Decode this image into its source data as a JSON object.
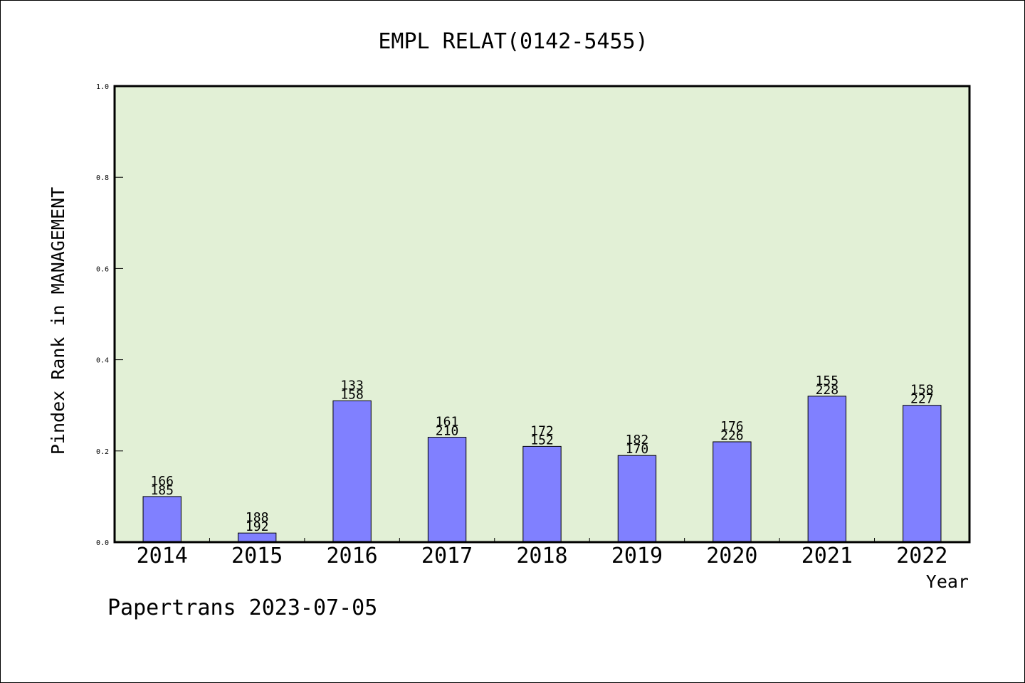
{
  "chart_data": {
    "type": "bar",
    "title": "EMPL RELAT(0142-5455)",
    "xlabel": "Year",
    "ylabel": "Pindex Rank in MANAGEMENT",
    "categories": [
      "2014",
      "2015",
      "2016",
      "2017",
      "2018",
      "2019",
      "2020",
      "2021",
      "2022"
    ],
    "values": [
      0.1,
      0.02,
      0.31,
      0.23,
      0.21,
      0.19,
      0.22,
      0.32,
      0.3
    ],
    "bar_labels_top": [
      "166",
      "188",
      "133",
      "161",
      "172",
      "182",
      "176",
      "155",
      "158"
    ],
    "bar_labels_bottom": [
      "185",
      "192",
      "158",
      "210",
      "152",
      "170",
      "226",
      "228",
      "227"
    ],
    "ylim": [
      0,
      1.0
    ],
    "yticks": [
      "0.0",
      "0.2",
      "0.4",
      "0.6",
      "0.8",
      "1.0"
    ],
    "grid": false,
    "legend": "none",
    "colors": {
      "plot_background": "#e2f0d6",
      "bar_fill": "#8080ff",
      "bar_edge": "#000000"
    }
  },
  "footer": {
    "text": "Papertrans 2023-07-05"
  }
}
